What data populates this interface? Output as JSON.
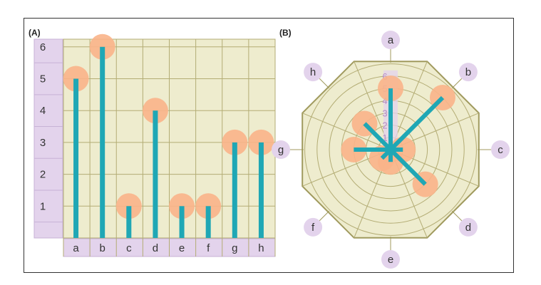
{
  "chart_data": [
    {
      "type": "bar",
      "panel_label": "(A)",
      "categories": [
        "a",
        "b",
        "c",
        "d",
        "e",
        "f",
        "g",
        "h"
      ],
      "values": [
        5,
        6,
        1,
        4,
        1,
        1,
        3,
        3
      ],
      "yticks": [
        "1",
        "2",
        "3",
        "4",
        "5",
        "6"
      ],
      "ylim": [
        0,
        6
      ],
      "grid": true,
      "colors": {
        "bar": "#1fa7b5",
        "marker": "#f9b48a",
        "background": "#eeecce",
        "grid": "#b3ac74",
        "axis_cell": "#e3d3ec"
      }
    },
    {
      "type": "radar",
      "panel_label": "(B)",
      "categories": [
        "a",
        "b",
        "c",
        "d",
        "e",
        "f",
        "g",
        "h"
      ],
      "values": [
        5,
        6,
        1,
        4,
        1,
        1,
        3,
        3
      ],
      "rticks": [
        "1",
        "2",
        "3",
        "4",
        "5",
        "6"
      ],
      "rlim": [
        0,
        6
      ],
      "grid": true,
      "colors": {
        "bar": "#1fa7b5",
        "marker": "#f9b48a",
        "background": "#eeecce",
        "grid": "#b3ac74",
        "label_circle": "#e3d3ec"
      }
    }
  ]
}
